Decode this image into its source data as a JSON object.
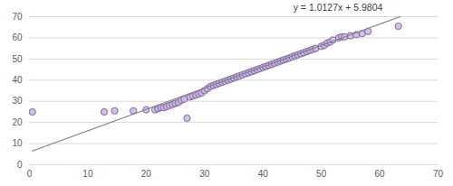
{
  "chart_data": {
    "type": "scatter",
    "annotation": "y = 1.0127x + 5.9804",
    "series": [
      {
        "type": "scatter",
        "marker": "circle",
        "color": "#8064a2",
        "x": [
          0.5,
          12.8,
          14.6,
          17.8,
          20.0,
          27.0,
          63.2,
          21.5,
          22.0,
          22.5,
          23.0,
          23.5,
          24.0,
          24.5,
          25.0,
          25.5,
          26.0,
          26.5,
          27.5,
          28.0,
          28.5,
          29.0,
          29.5,
          30.0,
          30.5,
          31.0,
          31.5,
          32.0,
          32.5,
          33.0,
          33.5,
          34.0,
          34.5,
          35.0,
          35.5,
          36.0,
          36.5,
          37.0,
          37.5,
          38.0,
          38.5,
          39.0,
          39.5,
          40.0,
          40.5,
          41.0,
          41.5,
          42.0,
          42.5,
          43.0,
          43.5,
          44.0,
          44.5,
          45.0,
          45.5,
          46.0,
          46.5,
          47.0,
          47.5,
          48.0,
          48.5,
          49.0,
          50.0,
          50.5,
          51.0,
          51.5,
          52.0,
          53.0,
          53.5,
          54.0,
          55.0,
          56.0,
          57.0,
          58.0
        ],
        "values": [
          25.0,
          25.0,
          25.5,
          25.5,
          26.0,
          22.0,
          65.5,
          26.0,
          26.5,
          27.0,
          27.0,
          27.5,
          28.0,
          28.5,
          29.0,
          29.5,
          30.5,
          31.0,
          32.0,
          32.5,
          33.0,
          33.5,
          34.0,
          35.0,
          36.0,
          37.0,
          37.5,
          38.0,
          38.5,
          39.0,
          39.5,
          40.0,
          40.5,
          41.0,
          41.5,
          42.0,
          42.5,
          43.0,
          43.5,
          44.0,
          44.5,
          45.0,
          45.5,
          46.0,
          46.5,
          47.0,
          47.5,
          48.0,
          48.5,
          49.0,
          49.5,
          50.0,
          50.5,
          51.0,
          51.5,
          52.0,
          52.5,
          53.0,
          53.5,
          54.0,
          54.5,
          55.0,
          56.0,
          56.5,
          57.5,
          58.0,
          59.0,
          60.0,
          60.5,
          60.5,
          61.0,
          61.5,
          62.0,
          63.0
        ]
      },
      {
        "type": "line",
        "line_style": "solid",
        "color": "#7f7f7f",
        "x": [
          0.5,
          63.5
        ],
        "values": [
          6.5,
          70.0
        ]
      }
    ],
    "xlim": [
      0,
      70
    ],
    "xticks": [
      0,
      10,
      20,
      30,
      40,
      50,
      60,
      70
    ],
    "ylim": [
      0,
      70
    ],
    "yticks": [
      0,
      10,
      20,
      30,
      40,
      50,
      60,
      70
    ],
    "grid": true
  }
}
